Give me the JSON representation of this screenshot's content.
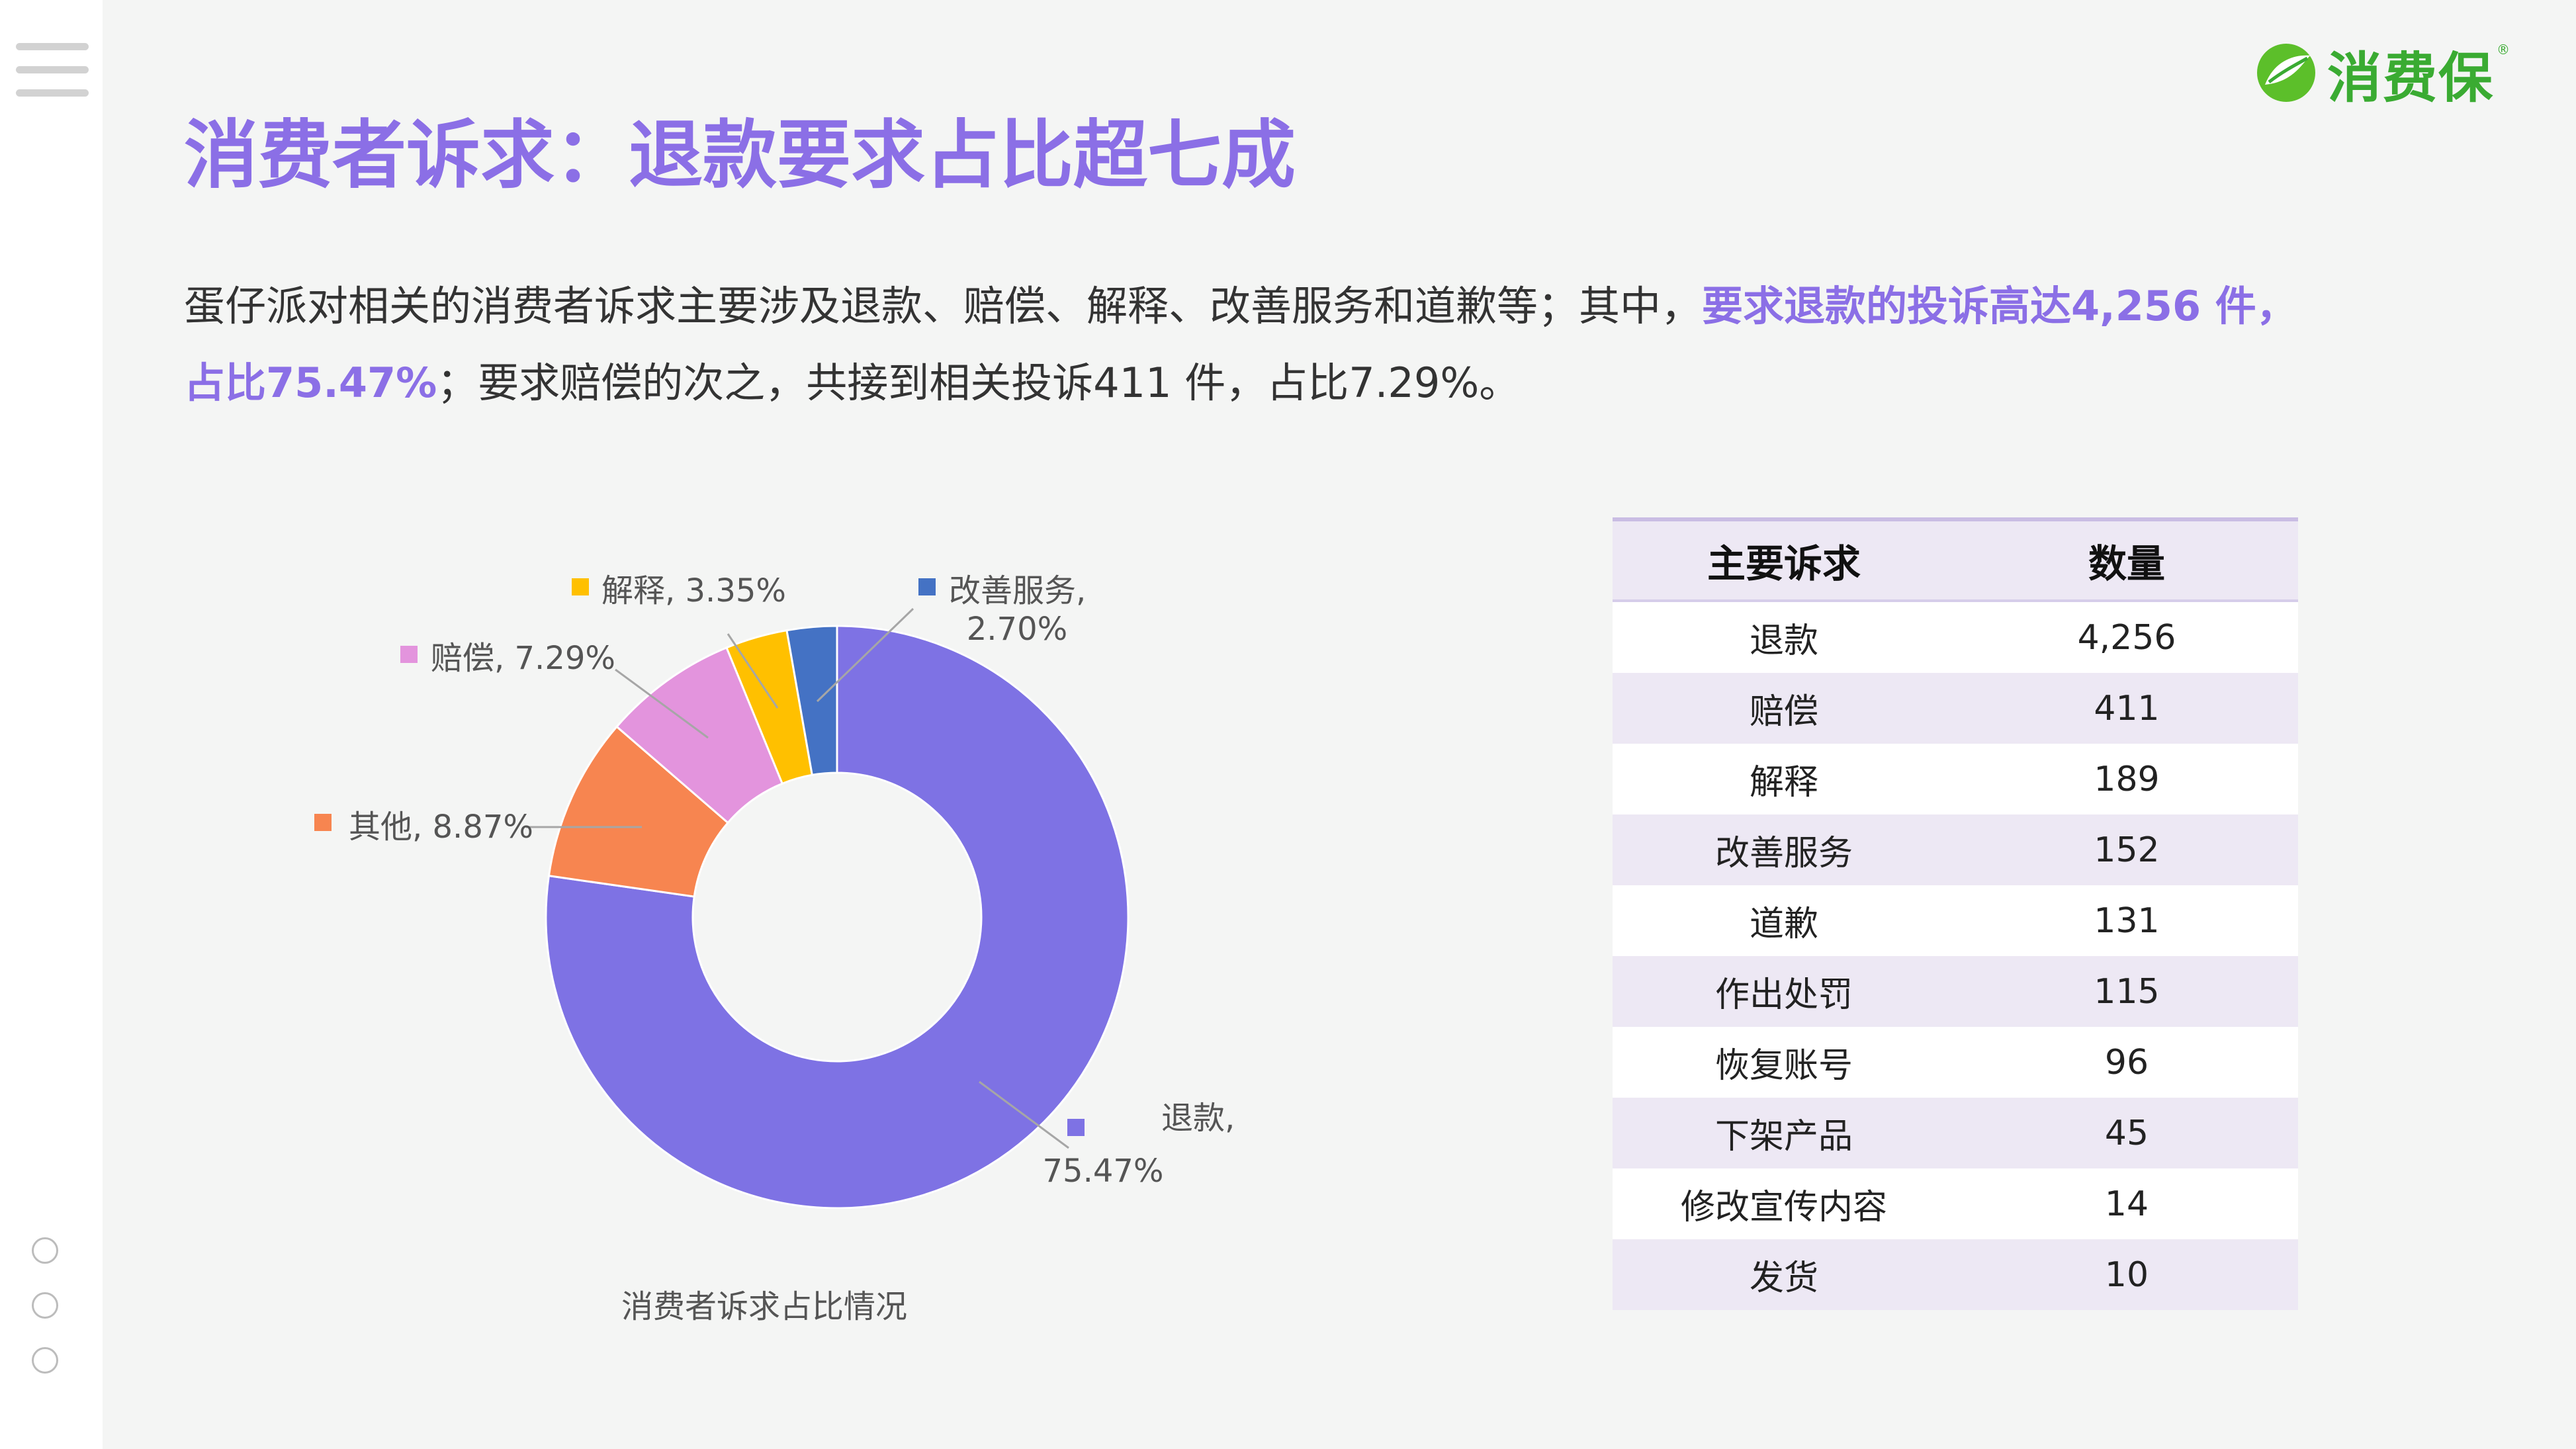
{
  "logo": {
    "text": "消费保",
    "registered": "®"
  },
  "title": "消费者诉求：退款要求占比超七成",
  "description": {
    "part1": "蛋仔派对相关的消费者诉求主要涉及退款、赔偿、解释、改善服务和道歉等；其中，",
    "highlight": "要求退款的投诉高达4,256 件，占比75.47%",
    "part2": "；要求赔偿的次之，共接到相关投诉411 件，占比7.29%。"
  },
  "chart_data": {
    "type": "pie",
    "donut": true,
    "title": "消费者诉求占比情况",
    "slices": [
      {
        "name": "退款",
        "value": 75.47,
        "label": "75.47%",
        "color": "#7e72e4"
      },
      {
        "name": "其他",
        "value": 8.87,
        "label": "8.87%",
        "color": "#f78550"
      },
      {
        "name": "赔偿",
        "value": 7.29,
        "label": "7.29%",
        "color": "#e394dd"
      },
      {
        "name": "解释",
        "value": 3.35,
        "label": "3.35%",
        "color": "#ffc000"
      },
      {
        "name": "改善服务",
        "value": 2.7,
        "label": "2.70%",
        "color": "#4472c4"
      }
    ]
  },
  "table": {
    "headers": [
      "主要诉求",
      "数量"
    ],
    "rows": [
      [
        "退款",
        "4,256"
      ],
      [
        "赔偿",
        "411"
      ],
      [
        "解释",
        "189"
      ],
      [
        "改善服务",
        "152"
      ],
      [
        "道歉",
        "131"
      ],
      [
        "作出处罚",
        "115"
      ],
      [
        "恢复账号",
        "96"
      ],
      [
        "下架产品",
        "45"
      ],
      [
        "修改宣传内容",
        "14"
      ],
      [
        "发货",
        "10"
      ]
    ]
  }
}
